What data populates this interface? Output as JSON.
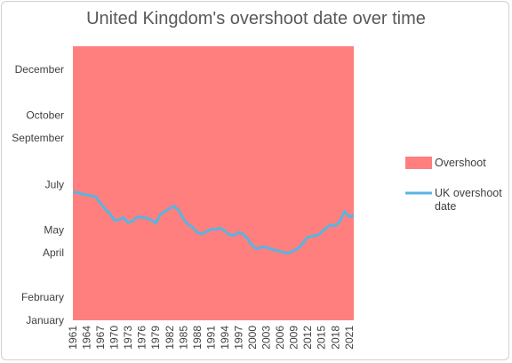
{
  "chart_data": {
    "type": "area",
    "title": "United Kingdom's overshoot date over time",
    "xlabel": "",
    "ylabel": "",
    "y_ticks": [
      "January",
      "February",
      "April",
      "May",
      "July",
      "September",
      "October",
      "December"
    ],
    "ylim": [
      "Jan 1",
      "Dec 31"
    ],
    "x_ticks": [
      "1961",
      "1964",
      "1967",
      "1970",
      "1973",
      "1976",
      "1979",
      "1982",
      "1985",
      "1988",
      "1991",
      "1994",
      "1997",
      "2000",
      "2003",
      "2006",
      "2009",
      "2012",
      "2015",
      "2018",
      "2021"
    ],
    "xlim": [
      1961,
      2022
    ],
    "series": [
      {
        "name": "Overshoot",
        "type": "area",
        "color": "#ff7f7f",
        "fill_to": "Dec 31"
      },
      {
        "name": "UK overshoot date",
        "type": "line",
        "color": "#5ab4e0",
        "x": [
          1961,
          1962,
          1963,
          1964,
          1965,
          1966,
          1967,
          1968,
          1969,
          1970,
          1971,
          1972,
          1973,
          1974,
          1975,
          1976,
          1977,
          1978,
          1979,
          1980,
          1981,
          1982,
          1983,
          1984,
          1985,
          1986,
          1987,
          1988,
          1989,
          1990,
          1991,
          1992,
          1993,
          1994,
          1995,
          1996,
          1997,
          1998,
          1999,
          2000,
          2001,
          2002,
          2003,
          2004,
          2005,
          2006,
          2007,
          2008,
          2009,
          2010,
          2011,
          2012,
          2013,
          2014,
          2015,
          2016,
          2017,
          2018,
          2019,
          2020,
          2021,
          2022
        ],
        "y": [
          "Jun 21",
          "Jun 20",
          "Jun 18",
          "Jun 17",
          "Jun 16",
          "Jun 14",
          "Jun 6",
          "May 29",
          "May 24",
          "May 14",
          "May 15",
          "May 18",
          "May 11",
          "May 13",
          "May 19",
          "May 18",
          "May 17",
          "May 15",
          "May 10",
          "May 22",
          "May 26",
          "May 30",
          "Jun 2",
          "May 27",
          "May 16",
          "May 9",
          "May 5",
          "Apr 28",
          "Apr 26",
          "Apr 29",
          "May 2",
          "May 2",
          "May 4",
          "Apr 30",
          "Apr 25",
          "Apr 24",
          "Apr 28",
          "Apr 26",
          "Apr 19",
          "Apr 10",
          "Apr 6",
          "Apr 9",
          "Apr 8",
          "Apr 6",
          "Apr 4",
          "Apr 3",
          "Apr 1",
          "Apr 1",
          "Apr 4",
          "Apr 7",
          "Apr 14",
          "Apr 22",
          "Apr 23",
          "Apr 24",
          "Apr 28",
          "May 4",
          "May 8",
          "May 7",
          "May 13",
          "May 26",
          "May 19",
          "May 21"
        ]
      }
    ],
    "grid": false,
    "legend_position": "right"
  }
}
